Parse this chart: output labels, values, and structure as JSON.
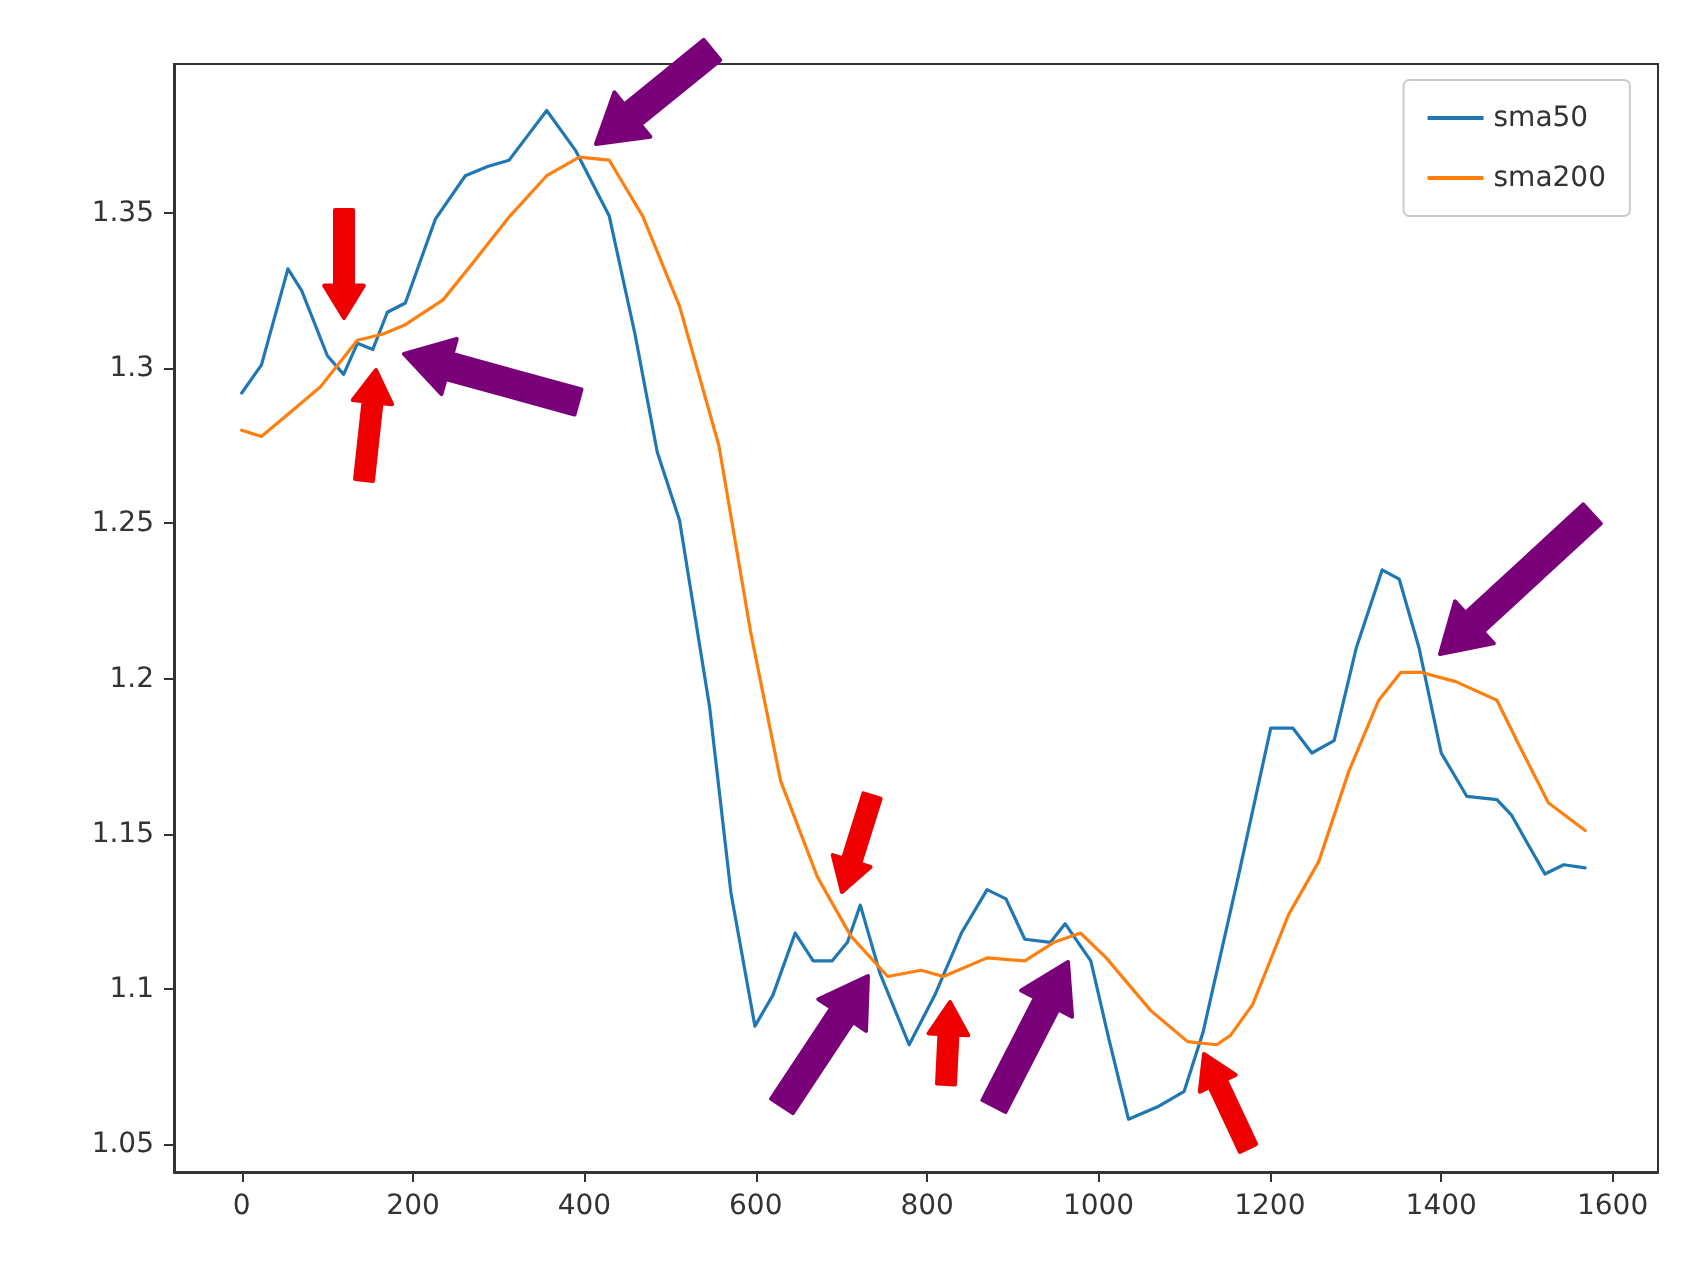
{
  "chart_data": {
    "type": "line",
    "xlim": [
      -79,
      1653
    ],
    "xticks": [
      0,
      200,
      400,
      600,
      800,
      1000,
      1200,
      1400,
      1600
    ],
    "ylim": [
      1.041,
      1.398
    ],
    "yticks": [
      1.05,
      1.1,
      1.15,
      1.2,
      1.25,
      1.3,
      1.35
    ],
    "legend": "top right",
    "series": [
      {
        "name": "sma50",
        "color": "#1f77b4",
        "x": [
          0,
          23,
          54,
          70,
          100,
          119,
          135,
          153,
          170,
          191,
          226,
          261,
          287,
          312,
          334,
          356,
          390,
          429,
          459,
          485,
          511,
          546,
          571,
          599,
          620,
          646,
          667,
          689,
          707,
          722,
          745,
          779,
          809,
          840,
          870,
          892,
          914,
          944,
          961,
          991,
          1012,
          1035,
          1069,
          1100,
          1122,
          1163,
          1201,
          1227,
          1249,
          1275,
          1301,
          1331,
          1351,
          1374,
          1400,
          1430,
          1465,
          1482,
          1521,
          1543,
          1568
        ],
        "values": [
          1.292,
          1.301,
          1.332,
          1.325,
          1.304,
          1.298,
          1.308,
          1.306,
          1.318,
          1.321,
          1.348,
          1.362,
          1.365,
          1.367,
          1.375,
          1.383,
          1.37,
          1.349,
          1.311,
          1.273,
          1.251,
          1.191,
          1.131,
          1.088,
          1.098,
          1.118,
          1.109,
          1.109,
          1.115,
          1.127,
          1.105,
          1.082,
          1.098,
          1.118,
          1.132,
          1.129,
          1.116,
          1.115,
          1.121,
          1.109,
          1.084,
          1.058,
          1.062,
          1.067,
          1.086,
          1.136,
          1.184,
          1.184,
          1.176,
          1.18,
          1.21,
          1.235,
          1.232,
          1.21,
          1.176,
          1.162,
          1.161,
          1.156,
          1.137,
          1.14,
          1.139
        ]
      },
      {
        "name": "sma200",
        "color": "#ff7f0e",
        "x": [
          0,
          23,
          62,
          92,
          135,
          165,
          191,
          235,
          270,
          313,
          356,
          394,
          429,
          468,
          511,
          557,
          594,
          629,
          672,
          711,
          754,
          793,
          819,
          870,
          914,
          948,
          979,
          1009,
          1061,
          1104,
          1138,
          1154,
          1180,
          1222,
          1257,
          1292,
          1327,
          1353,
          1376,
          1417,
          1465,
          1490,
          1525,
          1568
        ],
        "values": [
          1.28,
          1.278,
          1.287,
          1.294,
          1.309,
          1.311,
          1.314,
          1.322,
          1.334,
          1.349,
          1.362,
          1.368,
          1.367,
          1.349,
          1.32,
          1.275,
          1.215,
          1.167,
          1.136,
          1.117,
          1.104,
          1.106,
          1.104,
          1.11,
          1.109,
          1.115,
          1.118,
          1.11,
          1.093,
          1.083,
          1.082,
          1.085,
          1.095,
          1.124,
          1.141,
          1.17,
          1.193,
          1.202,
          1.202,
          1.199,
          1.193,
          1.179,
          1.16,
          1.151
        ]
      }
    ]
  }
}
